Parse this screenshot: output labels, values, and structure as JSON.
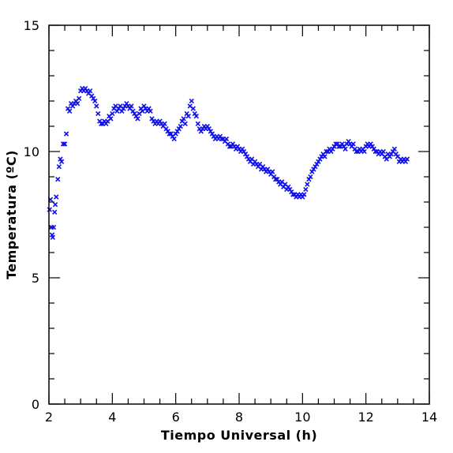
{
  "chart_data": {
    "type": "scatter",
    "title": "",
    "xlabel": "Tiempo Universal (h)",
    "ylabel": "Temperatura (ºC)",
    "xlim": [
      2,
      14
    ],
    "ylim": [
      0,
      15
    ],
    "grid": false,
    "marker": "x",
    "marker_color": "#1010ee",
    "x_ticks": [
      2,
      4,
      6,
      8,
      10,
      12,
      14
    ],
    "y_ticks": [
      0,
      5,
      10,
      15
    ],
    "x_tick_labels": [
      "2",
      "4",
      "6",
      "8",
      "10",
      "12",
      "14"
    ],
    "y_tick_labels": [
      "0",
      "5",
      "10",
      "15"
    ],
    "series": [
      {
        "points": [
          [
            2.02,
            7.7
          ],
          [
            2.05,
            8.1
          ],
          [
            2.08,
            7.0
          ],
          [
            2.1,
            6.7
          ],
          [
            2.12,
            6.6
          ],
          [
            2.15,
            7.0
          ],
          [
            2.18,
            7.6
          ],
          [
            2.2,
            7.9
          ],
          [
            2.23,
            8.2
          ],
          [
            2.28,
            8.9
          ],
          [
            2.32,
            9.4
          ],
          [
            2.36,
            9.7
          ],
          [
            2.4,
            9.6
          ],
          [
            2.45,
            10.3
          ],
          [
            2.5,
            10.3
          ],
          [
            2.55,
            10.7
          ],
          [
            2.6,
            11.7
          ],
          [
            2.65,
            11.6
          ],
          [
            2.7,
            11.9
          ],
          [
            2.75,
            11.8
          ],
          [
            2.8,
            11.9
          ],
          [
            2.85,
            12.0
          ],
          [
            2.9,
            11.9
          ],
          [
            2.95,
            12.1
          ],
          [
            3.0,
            12.4
          ],
          [
            3.05,
            12.5
          ],
          [
            3.1,
            12.4
          ],
          [
            3.15,
            12.5
          ],
          [
            3.2,
            12.4
          ],
          [
            3.25,
            12.3
          ],
          [
            3.3,
            12.4
          ],
          [
            3.35,
            12.2
          ],
          [
            3.4,
            12.1
          ],
          [
            3.45,
            12.0
          ],
          [
            3.5,
            11.8
          ],
          [
            3.55,
            11.5
          ],
          [
            3.6,
            11.2
          ],
          [
            3.65,
            11.1
          ],
          [
            3.7,
            11.1
          ],
          [
            3.75,
            11.2
          ],
          [
            3.8,
            11.1
          ],
          [
            3.85,
            11.2
          ],
          [
            3.9,
            11.4
          ],
          [
            3.95,
            11.3
          ],
          [
            4.0,
            11.5
          ],
          [
            4.05,
            11.7
          ],
          [
            4.1,
            11.8
          ],
          [
            4.15,
            11.6
          ],
          [
            4.2,
            11.7
          ],
          [
            4.25,
            11.8
          ],
          [
            4.3,
            11.6
          ],
          [
            4.35,
            11.7
          ],
          [
            4.4,
            11.8
          ],
          [
            4.45,
            11.9
          ],
          [
            4.5,
            11.8
          ],
          [
            4.55,
            11.7
          ],
          [
            4.6,
            11.8
          ],
          [
            4.65,
            11.6
          ],
          [
            4.7,
            11.5
          ],
          [
            4.75,
            11.4
          ],
          [
            4.8,
            11.3
          ],
          [
            4.85,
            11.5
          ],
          [
            4.9,
            11.7
          ],
          [
            4.95,
            11.6
          ],
          [
            5.0,
            11.8
          ],
          [
            5.05,
            11.7
          ],
          [
            5.1,
            11.6
          ],
          [
            5.15,
            11.7
          ],
          [
            5.2,
            11.6
          ],
          [
            5.25,
            11.3
          ],
          [
            5.3,
            11.2
          ],
          [
            5.35,
            11.1
          ],
          [
            5.4,
            11.2
          ],
          [
            5.45,
            11.1
          ],
          [
            5.5,
            11.2
          ],
          [
            5.55,
            11.1
          ],
          [
            5.6,
            11.0
          ],
          [
            5.65,
            11.1
          ],
          [
            5.7,
            10.9
          ],
          [
            5.75,
            10.8
          ],
          [
            5.8,
            10.7
          ],
          [
            5.85,
            10.7
          ],
          [
            5.9,
            10.6
          ],
          [
            5.95,
            10.5
          ],
          [
            6.0,
            10.7
          ],
          [
            6.05,
            10.8
          ],
          [
            6.1,
            10.9
          ],
          [
            6.15,
            11.0
          ],
          [
            6.2,
            11.2
          ],
          [
            6.25,
            11.3
          ],
          [
            6.3,
            11.1
          ],
          [
            6.35,
            11.5
          ],
          [
            6.4,
            11.4
          ],
          [
            6.45,
            11.8
          ],
          [
            6.5,
            12.0
          ],
          [
            6.55,
            11.7
          ],
          [
            6.6,
            11.5
          ],
          [
            6.65,
            11.4
          ],
          [
            6.7,
            11.1
          ],
          [
            6.75,
            10.9
          ],
          [
            6.8,
            10.8
          ],
          [
            6.85,
            10.9
          ],
          [
            6.9,
            11.0
          ],
          [
            6.95,
            10.9
          ],
          [
            7.0,
            11.0
          ],
          [
            7.05,
            10.9
          ],
          [
            7.1,
            10.8
          ],
          [
            7.15,
            10.7
          ],
          [
            7.2,
            10.6
          ],
          [
            7.25,
            10.5
          ],
          [
            7.3,
            10.6
          ],
          [
            7.35,
            10.5
          ],
          [
            7.4,
            10.6
          ],
          [
            7.45,
            10.5
          ],
          [
            7.5,
            10.5
          ],
          [
            7.55,
            10.4
          ],
          [
            7.6,
            10.5
          ],
          [
            7.65,
            10.3
          ],
          [
            7.7,
            10.2
          ],
          [
            7.75,
            10.2
          ],
          [
            7.8,
            10.3
          ],
          [
            7.85,
            10.2
          ],
          [
            7.9,
            10.1
          ],
          [
            7.95,
            10.2
          ],
          [
            8.0,
            10.1
          ],
          [
            8.05,
            10.0
          ],
          [
            8.1,
            10.1
          ],
          [
            8.15,
            10.0
          ],
          [
            8.2,
            9.9
          ],
          [
            8.25,
            9.8
          ],
          [
            8.3,
            9.7
          ],
          [
            8.35,
            9.6
          ],
          [
            8.4,
            9.7
          ],
          [
            8.45,
            9.5
          ],
          [
            8.5,
            9.6
          ],
          [
            8.55,
            9.5
          ],
          [
            8.6,
            9.4
          ],
          [
            8.65,
            9.5
          ],
          [
            8.7,
            9.3
          ],
          [
            8.75,
            9.4
          ],
          [
            8.8,
            9.3
          ],
          [
            8.85,
            9.2
          ],
          [
            8.9,
            9.3
          ],
          [
            8.95,
            9.2
          ],
          [
            9.0,
            9.1
          ],
          [
            9.05,
            9.2
          ],
          [
            9.1,
            9.0
          ],
          [
            9.15,
            8.9
          ],
          [
            9.2,
            8.9
          ],
          [
            9.25,
            8.8
          ],
          [
            9.3,
            8.7
          ],
          [
            9.35,
            8.8
          ],
          [
            9.4,
            8.6
          ],
          [
            9.45,
            8.7
          ],
          [
            9.5,
            8.5
          ],
          [
            9.55,
            8.6
          ],
          [
            9.6,
            8.5
          ],
          [
            9.65,
            8.4
          ],
          [
            9.7,
            8.3
          ],
          [
            9.75,
            8.3
          ],
          [
            9.8,
            8.2
          ],
          [
            9.85,
            8.3
          ],
          [
            9.9,
            8.2
          ],
          [
            9.95,
            8.3
          ],
          [
            10.0,
            8.2
          ],
          [
            10.05,
            8.3
          ],
          [
            10.1,
            8.5
          ],
          [
            10.15,
            8.7
          ],
          [
            10.2,
            8.9
          ],
          [
            10.25,
            9.0
          ],
          [
            10.3,
            9.2
          ],
          [
            10.35,
            9.3
          ],
          [
            10.4,
            9.4
          ],
          [
            10.45,
            9.5
          ],
          [
            10.5,
            9.6
          ],
          [
            10.55,
            9.7
          ],
          [
            10.6,
            9.8
          ],
          [
            10.65,
            9.9
          ],
          [
            10.7,
            9.8
          ],
          [
            10.75,
            10.0
          ],
          [
            10.8,
            10.0
          ],
          [
            10.85,
            10.1
          ],
          [
            10.9,
            10.0
          ],
          [
            10.95,
            10.1
          ],
          [
            11.0,
            10.2
          ],
          [
            11.05,
            10.3
          ],
          [
            11.1,
            10.3
          ],
          [
            11.15,
            10.2
          ],
          [
            11.2,
            10.2
          ],
          [
            11.25,
            10.3
          ],
          [
            11.3,
            10.2
          ],
          [
            11.35,
            10.1
          ],
          [
            11.4,
            10.3
          ],
          [
            11.45,
            10.4
          ],
          [
            11.5,
            10.3
          ],
          [
            11.55,
            10.2
          ],
          [
            11.6,
            10.3
          ],
          [
            11.65,
            10.1
          ],
          [
            11.7,
            10.0
          ],
          [
            11.75,
            10.0
          ],
          [
            11.8,
            10.1
          ],
          [
            11.85,
            10.0
          ],
          [
            11.9,
            10.1
          ],
          [
            11.95,
            10.0
          ],
          [
            12.0,
            10.2
          ],
          [
            12.05,
            10.3
          ],
          [
            12.1,
            10.2
          ],
          [
            12.15,
            10.3
          ],
          [
            12.2,
            10.2
          ],
          [
            12.25,
            10.1
          ],
          [
            12.3,
            10.0
          ],
          [
            12.35,
            10.0
          ],
          [
            12.4,
            9.9
          ],
          [
            12.45,
            10.0
          ],
          [
            12.5,
            9.9
          ],
          [
            12.55,
            10.0
          ],
          [
            12.6,
            9.8
          ],
          [
            12.65,
            9.7
          ],
          [
            12.7,
            9.9
          ],
          [
            12.75,
            9.8
          ],
          [
            12.8,
            9.9
          ],
          [
            12.85,
            10.0
          ],
          [
            12.9,
            10.1
          ],
          [
            12.95,
            9.9
          ],
          [
            13.0,
            9.8
          ],
          [
            13.05,
            9.6
          ],
          [
            13.1,
            9.7
          ],
          [
            13.15,
            9.6
          ],
          [
            13.2,
            9.7
          ],
          [
            13.25,
            9.6
          ],
          [
            13.3,
            9.7
          ]
        ]
      }
    ]
  }
}
